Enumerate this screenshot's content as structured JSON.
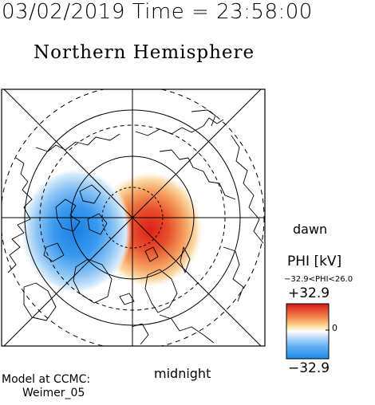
{
  "header": {
    "timestamp": "03/02/2019 Time = 23:58:00",
    "hemisphere_title": "Northern Hemisphere"
  },
  "map": {
    "orientation": {
      "right": "dawn",
      "bottom": "midnight"
    },
    "colors": {
      "positive": "#e0281e",
      "negative": "#1e8ce6",
      "zero": "#ffffff"
    }
  },
  "colorbar": {
    "title": "PHI [kV]",
    "range_text": "−32.9<PHI<26.0",
    "max_label": "+32.9",
    "zero_label": "0",
    "min_label": "−32.9"
  },
  "credit": {
    "line1": "Model at CCMC:",
    "line2": "Weimer_05"
  }
}
